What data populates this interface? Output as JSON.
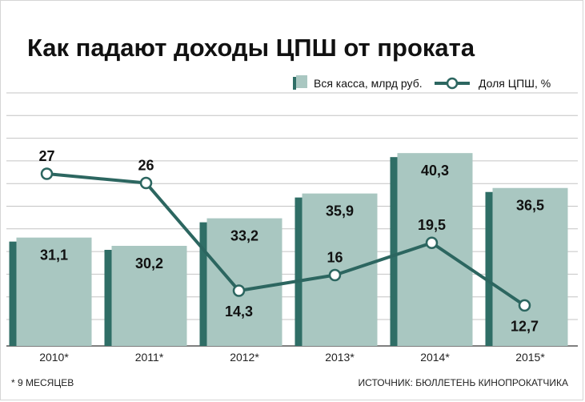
{
  "title": "Как падают доходы ЦПШ от проката",
  "legend": {
    "bars_label": "Вся касса, млрд руб.",
    "line_label": "Доля ЦПШ, %"
  },
  "colors": {
    "bar_face": "#a9c7c1",
    "bar_side": "#2f6e66",
    "line": "#2c6660",
    "grid": "#c4c4c4"
  },
  "footnote": "* 9 МЕСЯЦЕВ",
  "source": "ИСТОЧНИК: БЮЛЛЕТЕНЬ КИНОПРОКАТЧИКА",
  "chart_data": {
    "type": "bar",
    "title": "Как падают доходы ЦПШ от проката",
    "categories": [
      "2010*",
      "2011*",
      "2012*",
      "2013*",
      "2014*",
      "2015*"
    ],
    "series": [
      {
        "name": "Вся касса, млрд руб.",
        "type": "bar",
        "values": [
          31.1,
          30.2,
          33.2,
          35.9,
          40.3,
          36.5
        ],
        "labels": [
          "31,1",
          "30,2",
          "33,2",
          "35,9",
          "40,3",
          "36,5"
        ]
      },
      {
        "name": "Доля ЦПШ, %",
        "type": "line",
        "values": [
          27,
          26,
          14.3,
          16,
          19.5,
          12.7
        ],
        "labels": [
          "27",
          "26",
          "14,3",
          "16",
          "19,5",
          "12,7"
        ]
      }
    ],
    "bar_axis_range": [
      19.3,
      44.5
    ],
    "line_axis_range": [
      8.3,
      35.7
    ],
    "grid": true,
    "legend_position": "top-right"
  }
}
